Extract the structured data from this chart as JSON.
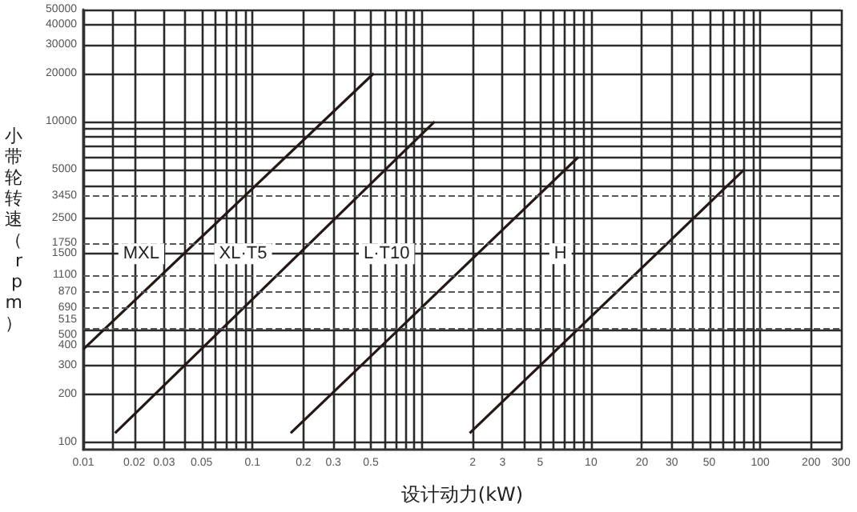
{
  "chart_data": {
    "type": "line",
    "xlabel": "设计动力(kW)",
    "ylabel": "小带轮转速（rpm）",
    "log": "xy",
    "grid": true,
    "marker": "none",
    "line_style": "solid",
    "xlim": [
      0.01,
      300
    ],
    "ylim": [
      90,
      50000
    ],
    "xticks": [
      0.01,
      {
        "value": 0.015,
        "label": null
      },
      0.02,
      0.03,
      {
        "value": 0.04,
        "label": null
      },
      0.05,
      {
        "value": 0.06,
        "label": null
      },
      {
        "value": 0.07,
        "label": null
      },
      {
        "value": 0.08,
        "label": null
      },
      {
        "value": 0.09,
        "label": null
      },
      0.1,
      0.2,
      0.3,
      {
        "value": 0.4,
        "label": null
      },
      0.5,
      {
        "value": 0.6,
        "label": null
      },
      {
        "value": 0.7,
        "label": null
      },
      {
        "value": 0.8,
        "label": null
      },
      {
        "value": 0.9,
        "label": null
      },
      {
        "value": 1,
        "label": null
      },
      2,
      3,
      {
        "value": 4,
        "label": null
      },
      5,
      {
        "value": 6,
        "label": null
      },
      {
        "value": 7,
        "label": null
      },
      {
        "value": 8,
        "label": null
      },
      {
        "value": 9,
        "label": null
      },
      10,
      20,
      30,
      {
        "value": 40,
        "label": null
      },
      50,
      {
        "value": 60,
        "label": null
      },
      {
        "value": 70,
        "label": null
      },
      {
        "value": 80,
        "label": null
      },
      {
        "value": 90,
        "label": null
      },
      100,
      200,
      300
    ],
    "yticks": [
      100,
      200,
      300,
      400,
      500,
      1500,
      2500,
      {
        "value": 4000,
        "label": null
      },
      5000,
      {
        "value": 6000,
        "label": null
      },
      {
        "value": 7000,
        "label": null
      },
      {
        "value": 8000,
        "label": null
      },
      {
        "value": 9000,
        "label": null
      },
      10000,
      20000,
      30000,
      40000,
      50000
    ],
    "ref_lines": [
      {
        "axis": "y",
        "value": 515,
        "label": "515",
        "line_style": "dashed",
        "color": "#555555"
      },
      {
        "axis": "y",
        "value": 690,
        "label": "690",
        "line_style": "dashed",
        "color": "#555555"
      },
      {
        "axis": "y",
        "value": 870,
        "label": "870",
        "line_style": "dashed",
        "color": "#555555"
      },
      {
        "axis": "y",
        "value": 1100,
        "label": "1100",
        "line_style": "dashed",
        "color": "#555555"
      },
      {
        "axis": "y",
        "value": 1750,
        "label": "1750",
        "line_style": "dashed",
        "color": "#555555"
      },
      {
        "axis": "y",
        "value": 3450,
        "label": "3450",
        "line_style": "dashed",
        "color": "#555555"
      }
    ],
    "series": [
      {
        "color": "#231815",
        "x": [
          0.01,
          0.52
        ],
        "values": [
          380,
          20000
        ]
      },
      {
        "color": "#231815",
        "x": [
          0.0154,
          1.19
        ],
        "values": [
          114,
          10000
        ]
      },
      {
        "color": "#231815",
        "x": [
          0.168,
          8.4
        ],
        "values": [
          114,
          6000
        ]
      },
      {
        "color": "#231815",
        "x": [
          1.92,
          80
        ],
        "values": [
          114,
          5000
        ]
      }
    ],
    "annotations": [
      {
        "text": "MXL",
        "x": 0.022,
        "y": 1500
      },
      {
        "text": "XL·T5",
        "x": 0.088,
        "y": 1500
      },
      {
        "text": "L·T10",
        "x": 0.62,
        "y": 1500
      },
      {
        "text": "H",
        "x": 6.6,
        "y": 1500
      }
    ]
  }
}
